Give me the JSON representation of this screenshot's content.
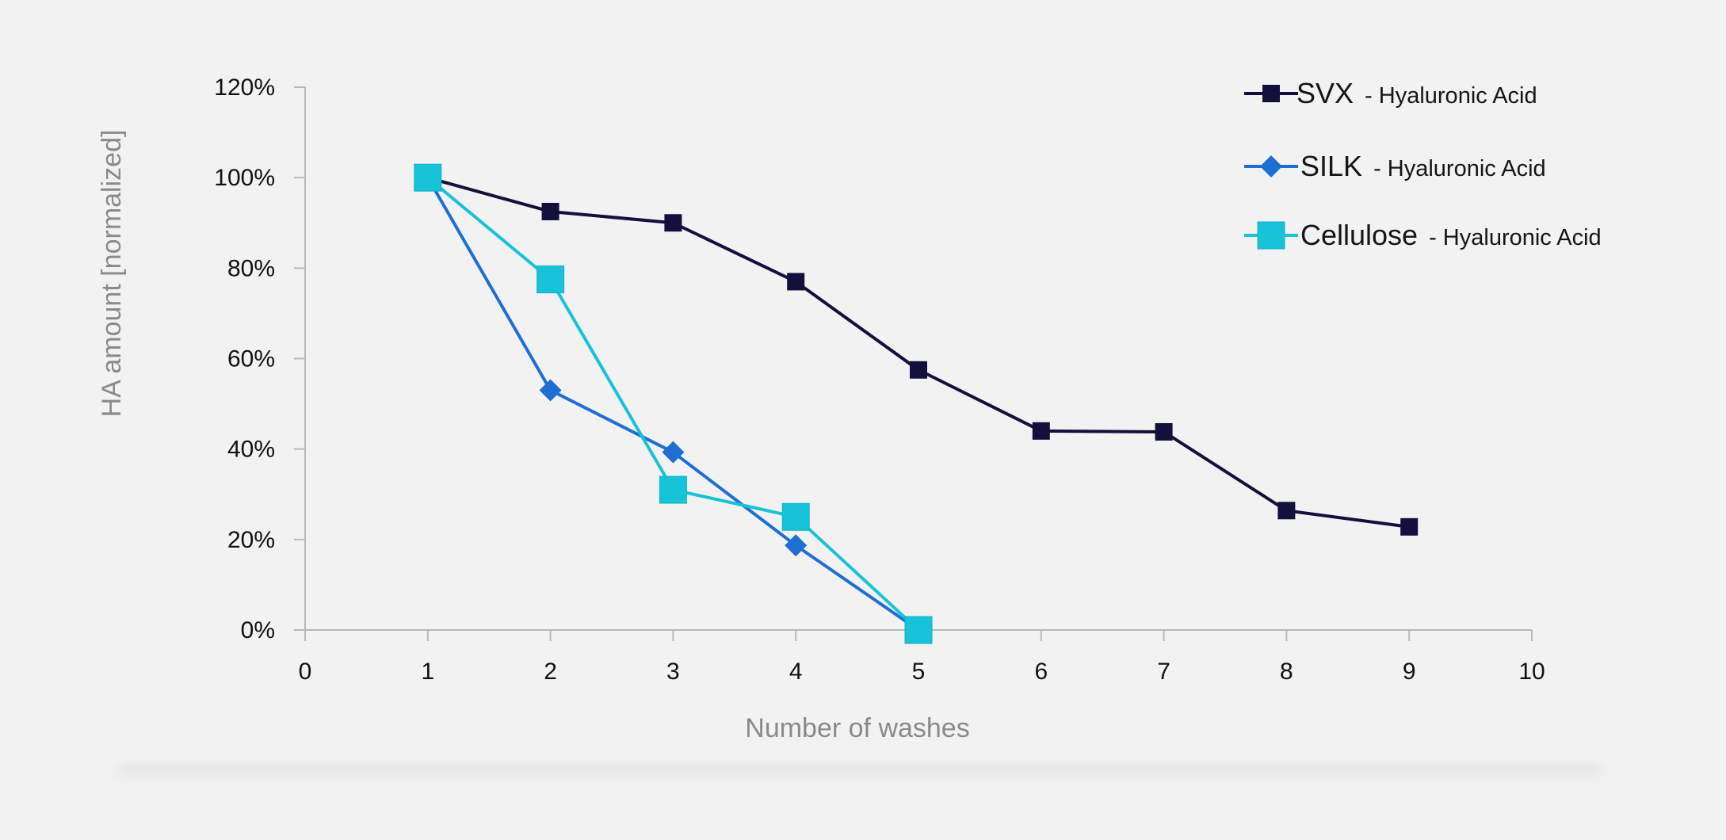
{
  "chart_data": {
    "type": "line",
    "xlabel": "Number of washes",
    "ylabel": "HA amount [normalized]",
    "xlim": [
      0,
      10
    ],
    "ylim": [
      0,
      1.2
    ],
    "x_ticks": [
      "0",
      "1",
      "2",
      "3",
      "4",
      "5",
      "6",
      "7",
      "8",
      "9",
      "10"
    ],
    "y_ticks": [
      "0%",
      "20%",
      "40%",
      "60%",
      "80%",
      "100%",
      "120%"
    ],
    "grid": false,
    "legend_position": "top-right",
    "series": [
      {
        "name": "SVX",
        "name_suffix": "- Hyaluronic Acid",
        "color": "#140f3c",
        "marker": "square",
        "x": [
          1,
          2,
          3,
          4,
          5,
          6,
          7,
          8,
          9
        ],
        "values": [
          1.0,
          0.925,
          0.9,
          0.77,
          0.575,
          0.44,
          0.438,
          0.264,
          0.228
        ]
      },
      {
        "name": "SILK",
        "name_suffix": "- Hyaluronic Acid",
        "color": "#1e6fd2",
        "marker": "diamond",
        "x": [
          1,
          2,
          3,
          4,
          5
        ],
        "values": [
          1.0,
          0.53,
          0.393,
          0.187,
          0.0
        ]
      },
      {
        "name": "Cellulose",
        "name_suffix": "- Hyaluronic Acid",
        "color": "#16c3d8",
        "marker": "square-large",
        "x": [
          1,
          2,
          3,
          4,
          5
        ],
        "values": [
          1.0,
          0.775,
          0.31,
          0.25,
          0.0
        ]
      }
    ]
  }
}
